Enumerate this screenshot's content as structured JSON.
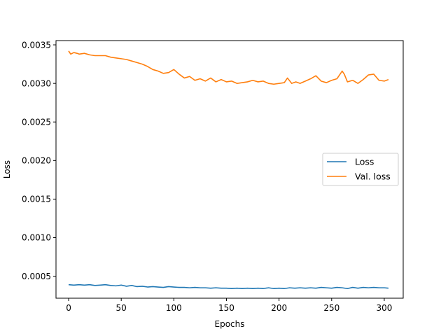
{
  "chart_data": {
    "type": "line",
    "title": "",
    "xlabel": "Epochs",
    "ylabel": "Loss",
    "xlim": [
      -12,
      318
    ],
    "ylim": [
      0.000215,
      0.003555
    ],
    "xticks": [
      0,
      50,
      100,
      150,
      200,
      250,
      300
    ],
    "xtick_labels": [
      "0",
      "50",
      "100",
      "150",
      "200",
      "250",
      "300"
    ],
    "yticks": [
      0.0005,
      0.001,
      0.0015,
      0.002,
      0.0025,
      0.003,
      0.0035
    ],
    "ytick_labels": [
      "0.0005",
      "0.0010",
      "0.0015",
      "0.0020",
      "0.0025",
      "0.0030",
      "0.0035"
    ],
    "grid": false,
    "legend_position": "center-right",
    "series": [
      {
        "name": "Loss",
        "color": "#1f77b4",
        "x": [
          0,
          5,
          10,
          15,
          20,
          25,
          30,
          35,
          40,
          45,
          50,
          55,
          60,
          65,
          70,
          75,
          80,
          85,
          90,
          95,
          100,
          105,
          110,
          115,
          120,
          125,
          130,
          135,
          140,
          145,
          150,
          155,
          160,
          165,
          170,
          175,
          180,
          185,
          190,
          195,
          200,
          205,
          210,
          215,
          220,
          225,
          230,
          235,
          240,
          245,
          250,
          255,
          260,
          265,
          270,
          275,
          280,
          285,
          290,
          295,
          300,
          304
        ],
        "values": [
          0.00039,
          0.000385,
          0.00039,
          0.000385,
          0.00039,
          0.00038,
          0.000385,
          0.00039,
          0.00038,
          0.000375,
          0.000385,
          0.00037,
          0.00038,
          0.000365,
          0.00037,
          0.00036,
          0.000365,
          0.00036,
          0.000355,
          0.000365,
          0.00036,
          0.000355,
          0.000355,
          0.00035,
          0.000355,
          0.00035,
          0.00035,
          0.000345,
          0.00035,
          0.000345,
          0.000345,
          0.00034,
          0.000345,
          0.00034,
          0.000345,
          0.00034,
          0.000345,
          0.00034,
          0.00035,
          0.00034,
          0.000345,
          0.00034,
          0.00035,
          0.000345,
          0.00035,
          0.000345,
          0.00035,
          0.000345,
          0.000355,
          0.00035,
          0.000345,
          0.000355,
          0.00035,
          0.00034,
          0.000355,
          0.000345,
          0.000355,
          0.00035,
          0.000355,
          0.00035,
          0.00035,
          0.000345
        ]
      },
      {
        "name": "Val. loss",
        "color": "#ff7f0e",
        "x": [
          0,
          2,
          5,
          8,
          10,
          15,
          20,
          25,
          30,
          35,
          40,
          45,
          50,
          55,
          60,
          65,
          70,
          75,
          80,
          85,
          90,
          95,
          100,
          105,
          110,
          115,
          120,
          125,
          130,
          135,
          140,
          145,
          150,
          155,
          160,
          165,
          170,
          175,
          180,
          185,
          190,
          195,
          200,
          205,
          208,
          212,
          216,
          220,
          225,
          230,
          235,
          240,
          245,
          250,
          255,
          260,
          262,
          265,
          270,
          275,
          280,
          285,
          290,
          295,
          300,
          304
        ],
        "values": [
          0.00342,
          0.00338,
          0.0034,
          0.00339,
          0.00338,
          0.00339,
          0.00337,
          0.00336,
          0.00336,
          0.00336,
          0.00334,
          0.00333,
          0.00332,
          0.00331,
          0.00329,
          0.00327,
          0.00325,
          0.00322,
          0.00318,
          0.00316,
          0.00313,
          0.00314,
          0.00318,
          0.00312,
          0.00307,
          0.00309,
          0.00304,
          0.00306,
          0.00303,
          0.00307,
          0.00302,
          0.00305,
          0.00302,
          0.00303,
          0.003,
          0.00301,
          0.00302,
          0.00304,
          0.00302,
          0.00303,
          0.003,
          0.00299,
          0.003,
          0.00301,
          0.00307,
          0.003,
          0.00302,
          0.003,
          0.00303,
          0.00306,
          0.0031,
          0.00303,
          0.00301,
          0.00304,
          0.00306,
          0.00316,
          0.00312,
          0.00302,
          0.00304,
          0.003,
          0.00305,
          0.00311,
          0.00312,
          0.00304,
          0.00303,
          0.00305
        ]
      }
    ]
  }
}
